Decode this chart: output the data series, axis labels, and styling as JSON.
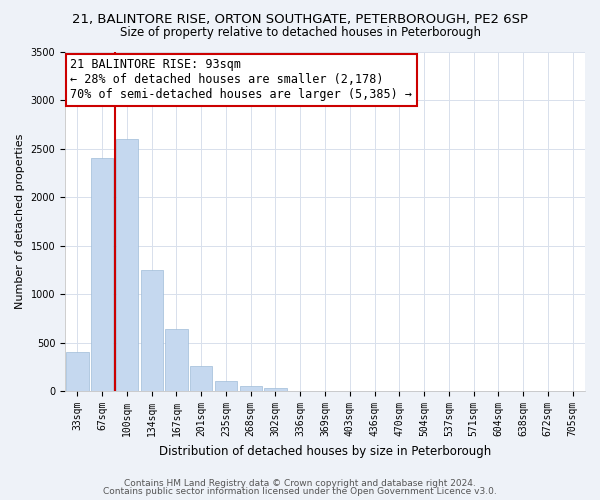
{
  "title1": "21, BALINTORE RISE, ORTON SOUTHGATE, PETERBOROUGH, PE2 6SP",
  "title2": "Size of property relative to detached houses in Peterborough",
  "xlabel": "Distribution of detached houses by size in Peterborough",
  "ylabel": "Number of detached properties",
  "bar_values": [
    400,
    2400,
    2600,
    1250,
    640,
    260,
    100,
    50,
    30,
    5,
    2,
    0,
    0,
    0,
    0,
    0,
    0,
    0,
    0,
    0,
    0
  ],
  "bar_labels": [
    "33sqm",
    "67sqm",
    "100sqm",
    "134sqm",
    "167sqm",
    "201sqm",
    "235sqm",
    "268sqm",
    "302sqm",
    "336sqm",
    "369sqm",
    "403sqm",
    "436sqm",
    "470sqm",
    "504sqm",
    "537sqm",
    "571sqm",
    "604sqm",
    "638sqm",
    "672sqm",
    "705sqm"
  ],
  "bar_color": "#c5d8ef",
  "bar_edge_color": "#a0bcd8",
  "vline_color": "#cc0000",
  "annotation_title": "21 BALINTORE RISE: 93sqm",
  "annotation_line1": "← 28% of detached houses are smaller (2,178)",
  "annotation_line2": "70% of semi-detached houses are larger (5,385) →",
  "annotation_box_color": "#ffffff",
  "annotation_box_edge": "#cc0000",
  "ylim": [
    0,
    3500
  ],
  "yticks": [
    0,
    500,
    1000,
    1500,
    2000,
    2500,
    3000,
    3500
  ],
  "footer1": "Contains HM Land Registry data © Crown copyright and database right 2024.",
  "footer2": "Contains public sector information licensed under the Open Government Licence v3.0.",
  "bg_color": "#eef2f8",
  "plot_bg_color": "#ffffff",
  "grid_color": "#d8e0ec",
  "title1_fontsize": 9.5,
  "title2_fontsize": 8.5,
  "xlabel_fontsize": 8.5,
  "ylabel_fontsize": 8,
  "annotation_fontsize": 8.5,
  "footer_fontsize": 6.5,
  "tick_fontsize": 7
}
